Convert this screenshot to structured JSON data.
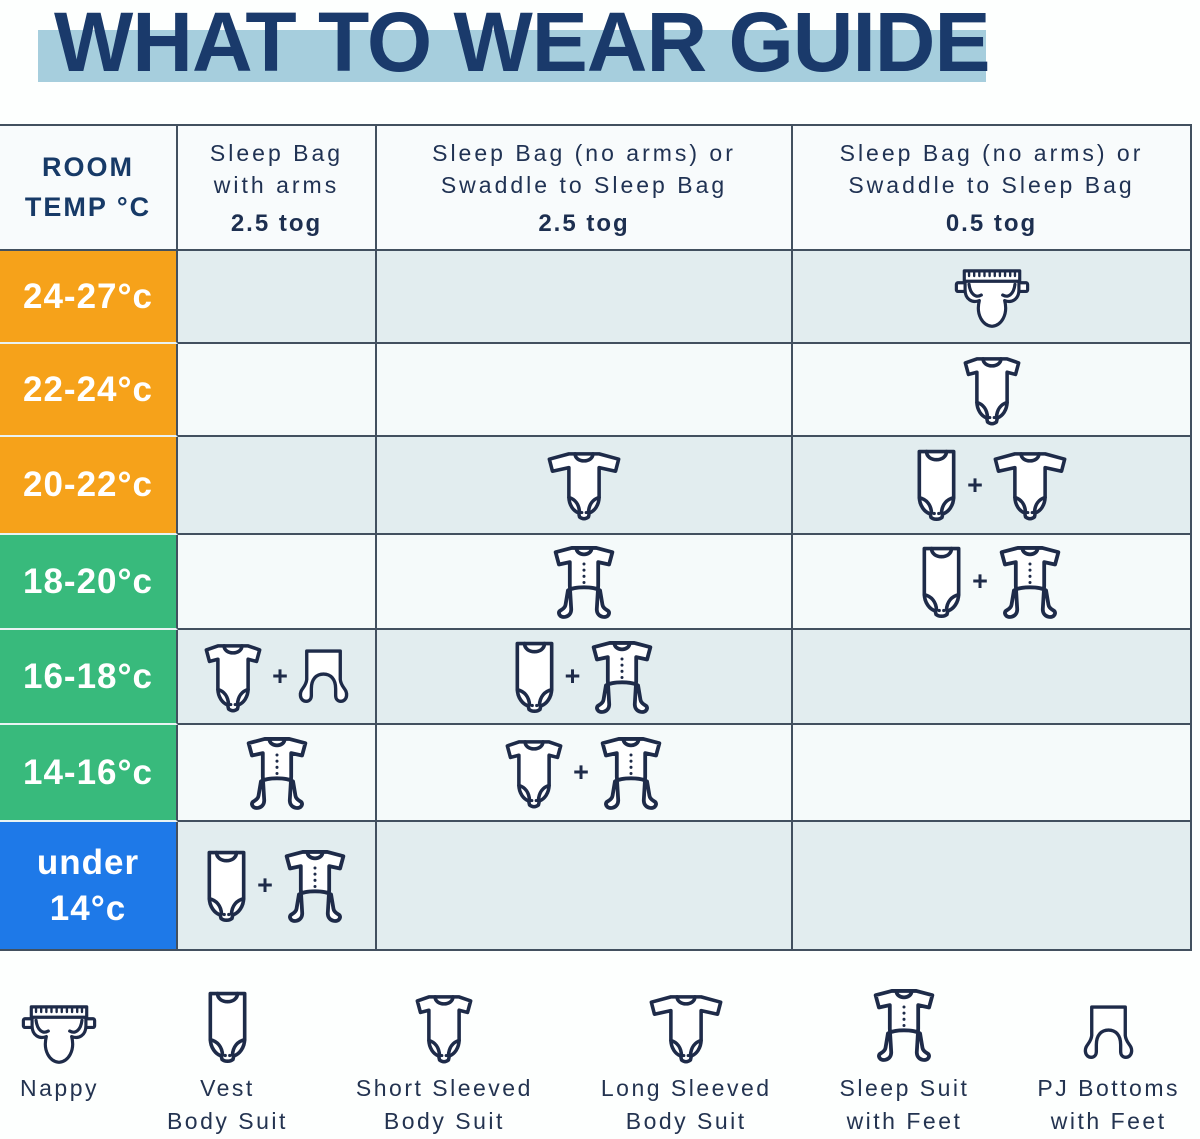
{
  "title": "WHAT TO WEAR GUIDE",
  "colors": {
    "banner": "#a6cedd",
    "title_ink": "#1a3a6b",
    "ink": "#1e2b49",
    "border": "#42505f",
    "hot": "#f6a21a",
    "mild": "#38ba7c",
    "cold": "#1e79e8",
    "cell_tinted": "#e2edef",
    "cell_plain": "#f5fafa"
  },
  "table": {
    "corner_lines": [
      "ROOM",
      "TEMP °C"
    ],
    "joiner": "+",
    "columns": [
      {
        "name_lines": [
          "Sleep Bag",
          "with arms"
        ],
        "tog": "2.5 tog"
      },
      {
        "name_lines": [
          "Sleep Bag (no arms) or",
          "Swaddle to Sleep Bag"
        ],
        "tog": "2.5 tog"
      },
      {
        "name_lines": [
          "Sleep Bag (no arms) or",
          "Swaddle to Sleep Bag"
        ],
        "tog": "0.5 tog"
      }
    ],
    "rows": [
      {
        "label_lines": [
          "24-27°c"
        ],
        "band": "hot",
        "cells": [
          [],
          [],
          [
            "nappy"
          ]
        ]
      },
      {
        "label_lines": [
          "22-24°c"
        ],
        "band": "hot",
        "cells": [
          [],
          [],
          [
            "short-sleeve"
          ]
        ]
      },
      {
        "label_lines": [
          "20-22°c"
        ],
        "band": "hot",
        "cells": [
          [],
          [
            "long-sleeve"
          ],
          [
            "vest",
            "long-sleeve"
          ]
        ]
      },
      {
        "label_lines": [
          "18-20°c"
        ],
        "band": "mild",
        "cells": [
          [],
          [
            "sleepsuit"
          ],
          [
            "vest",
            "sleepsuit"
          ]
        ]
      },
      {
        "label_lines": [
          "16-18°c"
        ],
        "band": "mild",
        "cells": [
          [
            "short-sleeve",
            "pj-bottoms"
          ],
          [
            "vest",
            "sleepsuit"
          ],
          []
        ]
      },
      {
        "label_lines": [
          "14-16°c"
        ],
        "band": "mild",
        "cells": [
          [
            "sleepsuit"
          ],
          [
            "short-sleeve",
            "sleepsuit"
          ],
          []
        ]
      },
      {
        "label_lines": [
          "under",
          "14°c"
        ],
        "band": "cold",
        "cells": [
          [
            "vest",
            "sleepsuit"
          ],
          [],
          []
        ]
      }
    ]
  },
  "legend": [
    {
      "icon": "nappy",
      "label_lines": [
        "Nappy"
      ]
    },
    {
      "icon": "vest",
      "label_lines": [
        "Vest",
        "Body Suit"
      ]
    },
    {
      "icon": "short-sleeve",
      "label_lines": [
        "Short Sleeved",
        "Body Suit"
      ]
    },
    {
      "icon": "long-sleeve",
      "label_lines": [
        "Long Sleeved",
        "Body Suit"
      ]
    },
    {
      "icon": "sleepsuit",
      "label_lines": [
        "Sleep Suit",
        "with Feet"
      ]
    },
    {
      "icon": "pj-bottoms",
      "label_lines": [
        "PJ Bottoms",
        "with Feet"
      ]
    }
  ]
}
